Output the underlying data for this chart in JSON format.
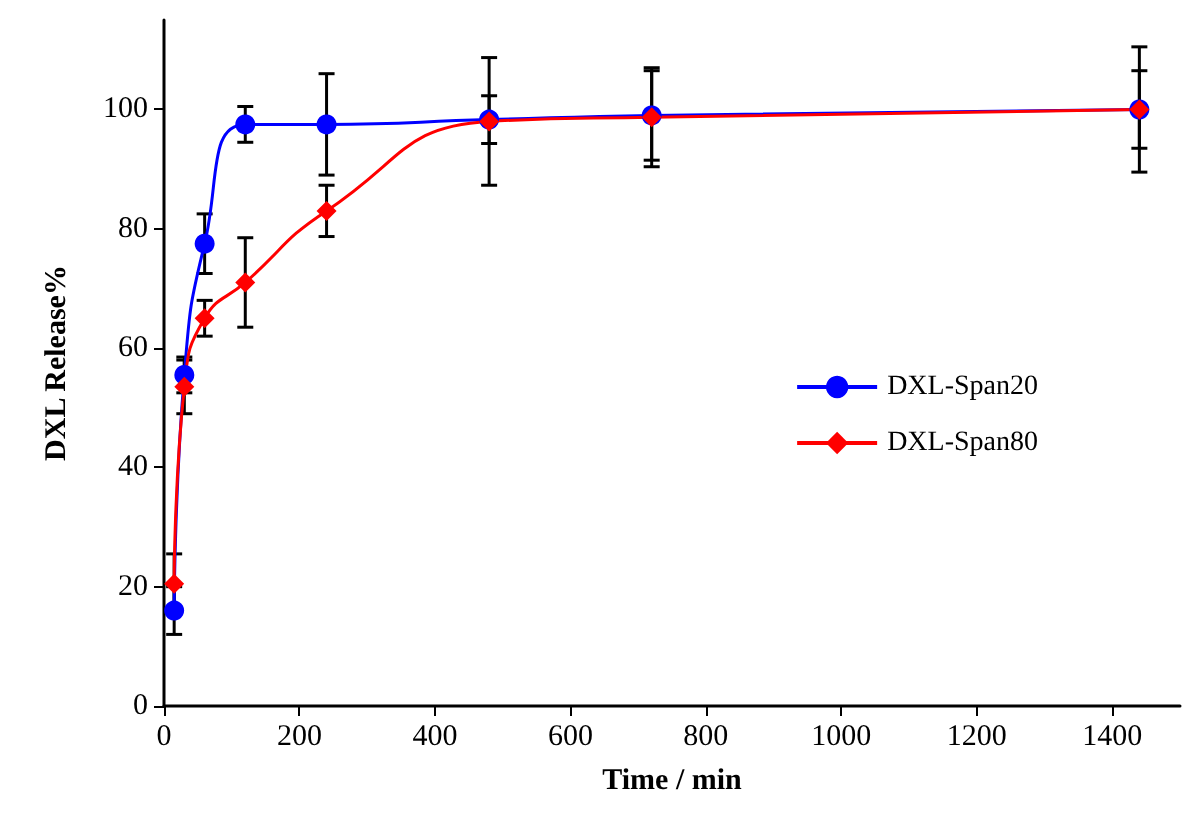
{
  "chart_data": {
    "type": "line",
    "xlabel": "Time / min",
    "ylabel": "DXL Release%",
    "x": [
      15,
      30,
      60,
      120,
      240,
      480,
      720,
      1440
    ],
    "series": [
      {
        "name": "DXL-Span20",
        "color": "#0000ff",
        "marker": "circle",
        "values": [
          16,
          55.5,
          77.5,
          97.5,
          97.5,
          98.3,
          99,
          100
        ],
        "errors": [
          4,
          3,
          5,
          3,
          8.5,
          4,
          7.5,
          6.5
        ]
      },
      {
        "name": "DXL-Span80",
        "color": "#ff0000",
        "marker": "diamond",
        "values": [
          20.5,
          53.5,
          65,
          71,
          83,
          98,
          98.7,
          100
        ],
        "errors": [
          5,
          4.5,
          3,
          7.5,
          4.3,
          10.7,
          8.3,
          10.5
        ]
      }
    ],
    "xlim": [
      0,
      1500
    ],
    "xticks": [
      0,
      200,
      400,
      600,
      800,
      1000,
      1200,
      1400
    ],
    "ylim": [
      0,
      115
    ],
    "yticks": [
      0,
      20,
      40,
      60,
      80,
      100
    ],
    "grid": false,
    "legend": "right",
    "line_style": "solid"
  }
}
